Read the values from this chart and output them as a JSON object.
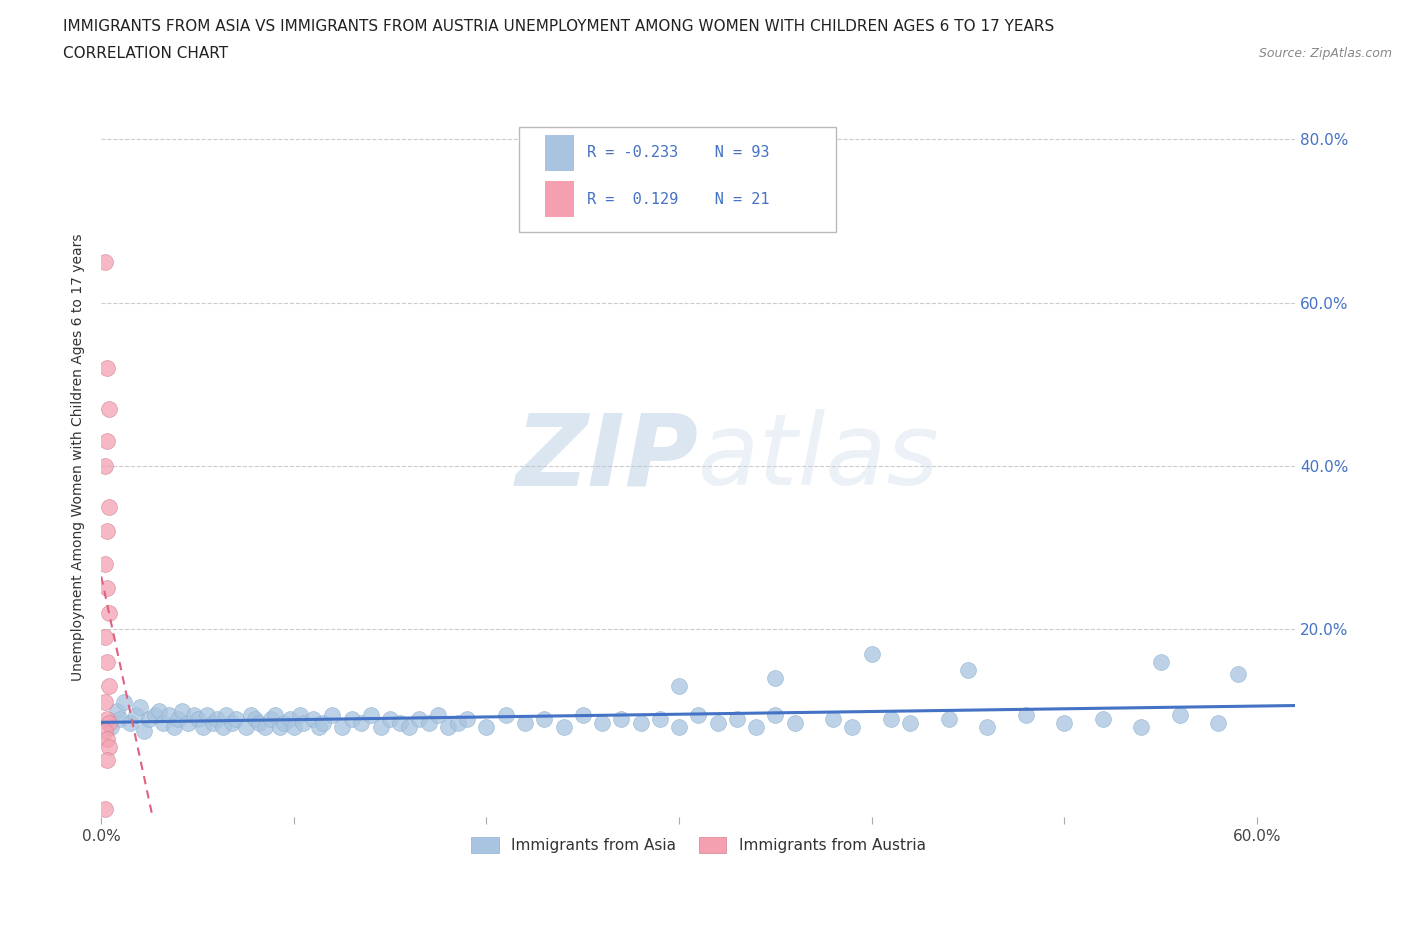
{
  "title": "IMMIGRANTS FROM ASIA VS IMMIGRANTS FROM AUSTRIA UNEMPLOYMENT AMONG WOMEN WITH CHILDREN AGES 6 TO 17 YEARS",
  "subtitle": "CORRELATION CHART",
  "source": "Source: ZipAtlas.com",
  "ylabel": "Unemployment Among Women with Children Ages 6 to 17 years",
  "xlim": [
    0.0,
    0.62
  ],
  "ylim": [
    -0.03,
    0.85
  ],
  "asia_color": "#a8c4e0",
  "austria_color": "#f4a0b0",
  "asia_line_color": "#4472c4",
  "austria_line_color": "#e06080",
  "R_asia": -0.233,
  "N_asia": 93,
  "R_austria": 0.129,
  "N_austria": 21,
  "watermark_zip": "ZIP",
  "watermark_atlas": "atlas",
  "background_color": "#ffffff",
  "grid_color": "#cccccc",
  "legend_label_asia": "Immigrants from Asia",
  "legend_label_austria": "Immigrants from Austria",
  "asia_scatter_x": [
    0.005,
    0.008,
    0.01,
    0.012,
    0.015,
    0.018,
    0.02,
    0.022,
    0.025,
    0.028,
    0.03,
    0.032,
    0.035,
    0.038,
    0.04,
    0.042,
    0.045,
    0.048,
    0.05,
    0.053,
    0.055,
    0.058,
    0.06,
    0.063,
    0.065,
    0.068,
    0.07,
    0.075,
    0.078,
    0.08,
    0.082,
    0.085,
    0.088,
    0.09,
    0.093,
    0.095,
    0.098,
    0.1,
    0.103,
    0.105,
    0.11,
    0.113,
    0.115,
    0.12,
    0.125,
    0.13,
    0.135,
    0.14,
    0.145,
    0.15,
    0.155,
    0.16,
    0.165,
    0.17,
    0.175,
    0.18,
    0.185,
    0.19,
    0.2,
    0.21,
    0.22,
    0.23,
    0.24,
    0.25,
    0.26,
    0.27,
    0.28,
    0.29,
    0.3,
    0.31,
    0.32,
    0.33,
    0.34,
    0.35,
    0.36,
    0.38,
    0.39,
    0.4,
    0.41,
    0.42,
    0.44,
    0.46,
    0.48,
    0.5,
    0.52,
    0.54,
    0.56,
    0.58,
    0.3,
    0.35,
    0.45,
    0.55,
    0.59
  ],
  "asia_scatter_y": [
    0.08,
    0.1,
    0.09,
    0.11,
    0.085,
    0.095,
    0.105,
    0.075,
    0.09,
    0.095,
    0.1,
    0.085,
    0.095,
    0.08,
    0.09,
    0.1,
    0.085,
    0.095,
    0.09,
    0.08,
    0.095,
    0.085,
    0.09,
    0.08,
    0.095,
    0.085,
    0.09,
    0.08,
    0.095,
    0.09,
    0.085,
    0.08,
    0.09,
    0.095,
    0.08,
    0.085,
    0.09,
    0.08,
    0.095,
    0.085,
    0.09,
    0.08,
    0.085,
    0.095,
    0.08,
    0.09,
    0.085,
    0.095,
    0.08,
    0.09,
    0.085,
    0.08,
    0.09,
    0.085,
    0.095,
    0.08,
    0.085,
    0.09,
    0.08,
    0.095,
    0.085,
    0.09,
    0.08,
    0.095,
    0.085,
    0.09,
    0.085,
    0.09,
    0.08,
    0.095,
    0.085,
    0.09,
    0.08,
    0.095,
    0.085,
    0.09,
    0.08,
    0.17,
    0.09,
    0.085,
    0.09,
    0.08,
    0.095,
    0.085,
    0.09,
    0.08,
    0.095,
    0.085,
    0.13,
    0.14,
    0.15,
    0.16,
    0.145
  ],
  "austria_scatter_x": [
    0.002,
    0.003,
    0.004,
    0.003,
    0.002,
    0.004,
    0.003,
    0.002,
    0.003,
    0.004,
    0.002,
    0.003,
    0.004,
    0.002,
    0.003,
    0.004,
    0.002,
    0.003,
    0.004,
    0.003,
    0.002
  ],
  "austria_scatter_y": [
    0.65,
    0.52,
    0.47,
    0.43,
    0.4,
    0.35,
    0.32,
    0.28,
    0.25,
    0.22,
    0.19,
    0.16,
    0.13,
    0.11,
    0.09,
    0.085,
    0.075,
    0.065,
    0.055,
    0.04,
    -0.02
  ]
}
